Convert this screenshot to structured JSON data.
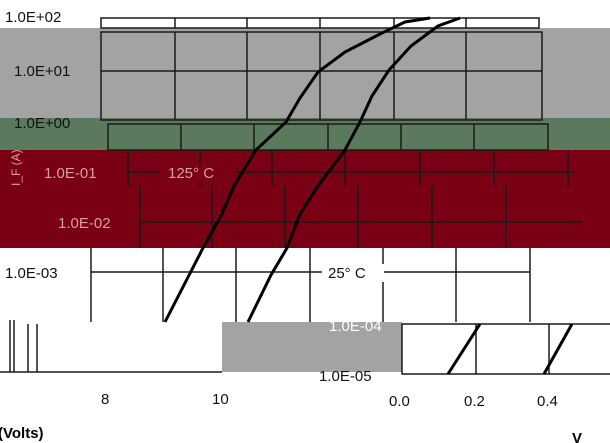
{
  "chart_data": {
    "type": "line",
    "title": "",
    "ylabel": "I_F (A)",
    "xlabel": "(Volts)",
    "xlabel_right": "V",
    "y_scale": "log",
    "y_ticks": [
      "1.0E+02",
      "1.0E+01",
      "1.0E+00",
      "1.0E-01",
      "1.0E-02",
      "1.0E-03",
      "1.0E-04",
      "1.0E-05"
    ],
    "x_ticks_left": [
      "8",
      "10"
    ],
    "x_ticks_right": [
      "0.0",
      "0.2",
      "0.4"
    ],
    "annotations": [
      "125° C",
      "25° C"
    ],
    "grid": true,
    "band_colors": {
      "band1": "#a3a3a3",
      "band2": "#5b7a5d",
      "band3": "#7a0014",
      "inset": "#a3a3a3"
    },
    "series": [
      {
        "name": "125° C",
        "x": [
          0.08,
          0.17,
          0.24,
          0.31,
          0.38,
          0.45
        ],
        "y": [
          1e-05,
          0.001,
          0.1,
          1,
          10,
          100
        ]
      },
      {
        "name": "25° C",
        "x": [
          0.13,
          0.22,
          0.32,
          0.4,
          0.47,
          0.55
        ],
        "y": [
          1e-05,
          0.001,
          0.1,
          1,
          10,
          100
        ]
      }
    ]
  }
}
